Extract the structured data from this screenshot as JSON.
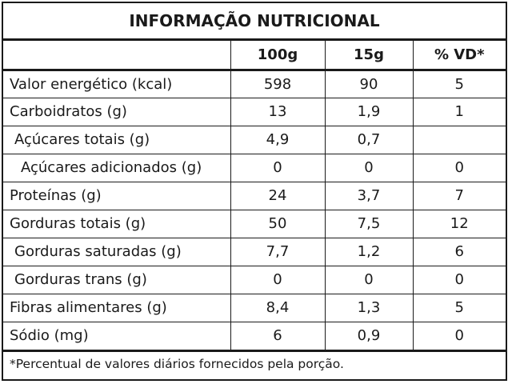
{
  "title": "INFORMAÇÃO NUTRICIONAL",
  "columns": [
    "",
    "100g",
    "15g",
    "% VD*"
  ],
  "rows": [
    {
      "name": "Valor energético (kcal)",
      "g100": "598",
      "g15": "90",
      "vd": "5",
      "indent": 0
    },
    {
      "name": "Carboidratos (g)",
      "g100": "13",
      "g15": "1,9",
      "vd": "1",
      "indent": 0
    },
    {
      "name": "Açúcares totais (g)",
      "g100": "4,9",
      "g15": "0,7",
      "vd": "",
      "indent": 1
    },
    {
      "name": "Açúcares adicionados (g)",
      "g100": "0",
      "g15": "0",
      "vd": "0",
      "indent": 2
    },
    {
      "name": "Proteínas (g)",
      "g100": "24",
      "g15": "3,7",
      "vd": "7",
      "indent": 0
    },
    {
      "name": "Gorduras totais (g)",
      "g100": "50",
      "g15": "7,5",
      "vd": "12",
      "indent": 0
    },
    {
      "name": "Gorduras saturadas (g)",
      "g100": "7,7",
      "g15": "1,2",
      "vd": "6",
      "indent": 1
    },
    {
      "name": "Gorduras trans (g)",
      "g100": "0",
      "g15": "0",
      "vd": "0",
      "indent": 1
    },
    {
      "name": "Fibras alimentares (g)",
      "g100": "8,4",
      "g15": "1,3",
      "vd": "5",
      "indent": 0
    },
    {
      "name": "Sódio (mg)",
      "g100": "6",
      "g15": "0,9",
      "vd": "0",
      "indent": 0
    }
  ],
  "footnote": "*Percentual de valores diários fornecidos pela porção."
}
